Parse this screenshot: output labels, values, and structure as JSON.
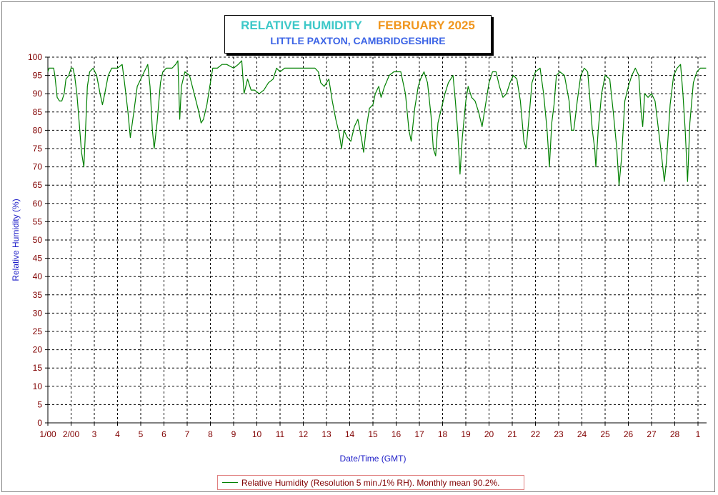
{
  "chart_data": {
    "type": "line",
    "title": "RELATIVE HUMIDITY",
    "title_month": "FEBRUARY 2025",
    "subtitle": "LITTLE PAXTON, CAMBRIDGESHIRE",
    "xlabel": "Date/Time (GMT)",
    "ylabel": "Relative Humidity (%)",
    "ylim": [
      0,
      100
    ],
    "y_ticks": [
      0,
      5,
      10,
      15,
      20,
      25,
      30,
      35,
      40,
      45,
      50,
      55,
      60,
      65,
      70,
      75,
      80,
      85,
      90,
      95,
      100
    ],
    "xlim": [
      1.0,
      29.35
    ],
    "x_ticks": [
      {
        "value": 1,
        "label": "1/00"
      },
      {
        "value": 2,
        "label": "2/00"
      },
      {
        "value": 3,
        "label": "3"
      },
      {
        "value": 4,
        "label": "4"
      },
      {
        "value": 5,
        "label": "5"
      },
      {
        "value": 6,
        "label": "6"
      },
      {
        "value": 7,
        "label": "7"
      },
      {
        "value": 8,
        "label": "8"
      },
      {
        "value": 9,
        "label": "9"
      },
      {
        "value": 10,
        "label": "10"
      },
      {
        "value": 11,
        "label": "11"
      },
      {
        "value": 12,
        "label": "12"
      },
      {
        "value": 13,
        "label": "13"
      },
      {
        "value": 14,
        "label": "14"
      },
      {
        "value": 15,
        "label": "15"
      },
      {
        "value": 16,
        "label": "16"
      },
      {
        "value": 17,
        "label": "17"
      },
      {
        "value": 18,
        "label": "18"
      },
      {
        "value": 19,
        "label": "19"
      },
      {
        "value": 20,
        "label": "20"
      },
      {
        "value": 21,
        "label": "21"
      },
      {
        "value": 22,
        "label": "22"
      },
      {
        "value": 23,
        "label": "23"
      },
      {
        "value": 24,
        "label": "24"
      },
      {
        "value": 25,
        "label": "25"
      },
      {
        "value": 26,
        "label": "26"
      },
      {
        "value": 27,
        "label": "27"
      },
      {
        "value": 28,
        "label": "28"
      },
      {
        "value": 29,
        "label": "1"
      }
    ],
    "grid": true,
    "legend_position": "bottom",
    "colors": {
      "series": "#008000",
      "tick_labels": "#800000",
      "axis_titles": "#1e1ec8",
      "title": "#3cc8c8",
      "title_month": "#f0961e",
      "subtitle": "#3c64e6"
    },
    "series": [
      {
        "name": "Relative Humidity (Resolution 5 min./1% RH). Monthly mean 90.2%.",
        "points": [
          [
            1.0,
            96
          ],
          [
            1.05,
            97
          ],
          [
            1.25,
            97
          ],
          [
            1.3,
            95
          ],
          [
            1.4,
            89
          ],
          [
            1.5,
            88
          ],
          [
            1.6,
            88
          ],
          [
            1.7,
            90
          ],
          [
            1.78,
            94
          ],
          [
            1.9,
            95
          ],
          [
            2.0,
            97
          ],
          [
            2.08,
            97
          ],
          [
            2.15,
            95
          ],
          [
            2.25,
            90
          ],
          [
            2.35,
            82
          ],
          [
            2.45,
            74
          ],
          [
            2.55,
            70
          ],
          [
            2.62,
            80
          ],
          [
            2.7,
            92
          ],
          [
            2.8,
            96
          ],
          [
            2.95,
            97
          ],
          [
            3.1,
            95
          ],
          [
            3.25,
            90
          ],
          [
            3.35,
            87
          ],
          [
            3.45,
            90
          ],
          [
            3.6,
            95
          ],
          [
            3.75,
            97
          ],
          [
            4.0,
            97
          ],
          [
            4.2,
            98
          ],
          [
            4.3,
            93
          ],
          [
            4.45,
            85
          ],
          [
            4.55,
            78
          ],
          [
            4.7,
            85
          ],
          [
            4.85,
            92
          ],
          [
            5.0,
            94
          ],
          [
            5.15,
            96
          ],
          [
            5.3,
            98
          ],
          [
            5.4,
            92
          ],
          [
            5.5,
            80
          ],
          [
            5.58,
            75
          ],
          [
            5.7,
            82
          ],
          [
            5.85,
            93
          ],
          [
            5.95,
            96
          ],
          [
            6.1,
            97
          ],
          [
            6.35,
            97
          ],
          [
            6.5,
            98
          ],
          [
            6.6,
            99
          ],
          [
            6.68,
            83
          ],
          [
            6.75,
            92
          ],
          [
            6.9,
            96
          ],
          [
            7.1,
            95
          ],
          [
            7.3,
            90
          ],
          [
            7.5,
            85
          ],
          [
            7.6,
            82
          ],
          [
            7.7,
            83
          ],
          [
            7.85,
            87
          ],
          [
            8.0,
            93
          ],
          [
            8.1,
            97
          ],
          [
            8.3,
            97
          ],
          [
            8.5,
            98
          ],
          [
            8.7,
            98
          ],
          [
            9.0,
            97
          ],
          [
            9.2,
            98
          ],
          [
            9.35,
            99
          ],
          [
            9.45,
            90
          ],
          [
            9.6,
            94
          ],
          [
            9.75,
            91
          ],
          [
            9.9,
            91
          ],
          [
            10.1,
            90
          ],
          [
            10.3,
            91
          ],
          [
            10.5,
            93
          ],
          [
            10.7,
            94
          ],
          [
            10.85,
            97
          ],
          [
            11.0,
            96
          ],
          [
            11.2,
            97
          ],
          [
            11.5,
            97
          ],
          [
            12.0,
            97
          ],
          [
            12.5,
            97
          ],
          [
            12.65,
            96
          ],
          [
            12.75,
            93
          ],
          [
            12.9,
            92
          ],
          [
            13.1,
            94
          ],
          [
            13.25,
            88
          ],
          [
            13.4,
            83
          ],
          [
            13.55,
            79
          ],
          [
            13.65,
            75
          ],
          [
            13.75,
            80
          ],
          [
            13.9,
            78
          ],
          [
            14.05,
            77
          ],
          [
            14.2,
            81
          ],
          [
            14.35,
            83
          ],
          [
            14.5,
            78
          ],
          [
            14.6,
            74
          ],
          [
            14.7,
            80
          ],
          [
            14.85,
            86
          ],
          [
            15.0,
            87
          ],
          [
            15.1,
            90
          ],
          [
            15.25,
            92
          ],
          [
            15.35,
            89
          ],
          [
            15.5,
            92
          ],
          [
            15.7,
            95
          ],
          [
            15.9,
            96
          ],
          [
            16.2,
            96
          ],
          [
            16.4,
            90
          ],
          [
            16.55,
            80
          ],
          [
            16.65,
            77
          ],
          [
            16.8,
            86
          ],
          [
            16.95,
            92
          ],
          [
            17.05,
            94
          ],
          [
            17.2,
            96
          ],
          [
            17.35,
            93
          ],
          [
            17.5,
            84
          ],
          [
            17.6,
            75
          ],
          [
            17.7,
            73
          ],
          [
            17.8,
            82
          ],
          [
            17.95,
            86
          ],
          [
            18.1,
            90
          ],
          [
            18.25,
            93
          ],
          [
            18.45,
            95
          ],
          [
            18.55,
            88
          ],
          [
            18.65,
            80
          ],
          [
            18.75,
            68
          ],
          [
            18.85,
            78
          ],
          [
            19.0,
            88
          ],
          [
            19.1,
            92
          ],
          [
            19.25,
            89
          ],
          [
            19.4,
            88
          ],
          [
            19.55,
            85
          ],
          [
            19.7,
            81
          ],
          [
            19.85,
            87
          ],
          [
            20.0,
            93
          ],
          [
            20.15,
            96
          ],
          [
            20.3,
            96
          ],
          [
            20.45,
            92
          ],
          [
            20.6,
            89
          ],
          [
            20.75,
            90
          ],
          [
            20.9,
            93
          ],
          [
            21.05,
            95
          ],
          [
            21.2,
            94
          ],
          [
            21.35,
            88
          ],
          [
            21.5,
            77
          ],
          [
            21.6,
            75
          ],
          [
            21.7,
            82
          ],
          [
            21.85,
            93
          ],
          [
            22.0,
            96
          ],
          [
            22.2,
            97
          ],
          [
            22.35,
            90
          ],
          [
            22.5,
            80
          ],
          [
            22.6,
            70
          ],
          [
            22.7,
            82
          ],
          [
            22.8,
            87
          ],
          [
            22.9,
            95
          ],
          [
            23.05,
            96
          ],
          [
            23.25,
            95
          ],
          [
            23.45,
            88
          ],
          [
            23.55,
            80
          ],
          [
            23.65,
            80
          ],
          [
            23.8,
            88
          ],
          [
            23.95,
            95
          ],
          [
            24.1,
            97
          ],
          [
            24.25,
            96
          ],
          [
            24.35,
            88
          ],
          [
            24.45,
            80
          ],
          [
            24.55,
            75
          ],
          [
            24.6,
            70
          ],
          [
            24.7,
            80
          ],
          [
            24.85,
            90
          ],
          [
            25.0,
            95
          ],
          [
            25.2,
            94
          ],
          [
            25.35,
            85
          ],
          [
            25.5,
            75
          ],
          [
            25.6,
            65
          ],
          [
            25.7,
            72
          ],
          [
            25.85,
            88
          ],
          [
            26.0,
            92
          ],
          [
            26.15,
            95
          ],
          [
            26.3,
            97
          ],
          [
            26.45,
            95
          ],
          [
            26.55,
            85
          ],
          [
            26.62,
            81
          ],
          [
            26.7,
            90
          ],
          [
            26.85,
            89
          ],
          [
            27.0,
            90
          ],
          [
            27.15,
            88
          ],
          [
            27.3,
            80
          ],
          [
            27.45,
            72
          ],
          [
            27.55,
            66
          ],
          [
            27.65,
            72
          ],
          [
            27.8,
            87
          ],
          [
            27.95,
            95
          ],
          [
            28.1,
            97
          ],
          [
            28.25,
            98
          ],
          [
            28.35,
            90
          ],
          [
            28.45,
            80
          ],
          [
            28.55,
            66
          ],
          [
            28.65,
            82
          ],
          [
            28.8,
            93
          ],
          [
            28.95,
            96
          ],
          [
            29.1,
            97
          ],
          [
            29.35,
            97
          ]
        ]
      }
    ]
  }
}
